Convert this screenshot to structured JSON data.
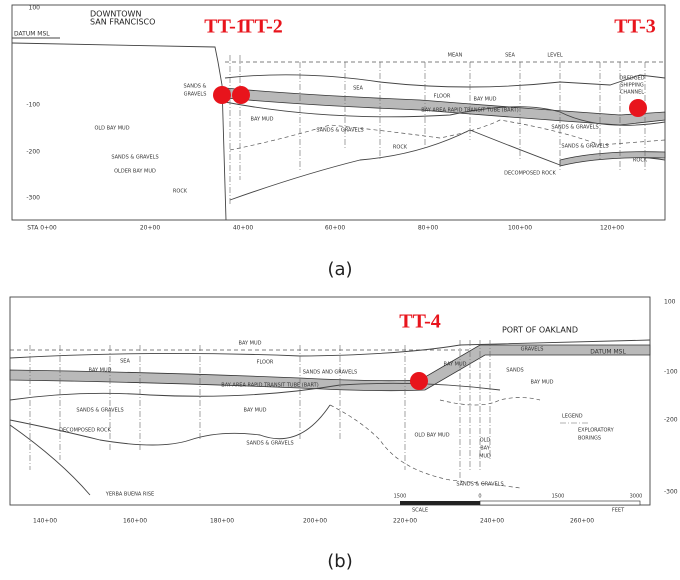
{
  "panel_a": {
    "location": [
      "DOWNTOWN",
      "SAN FRANCISCO"
    ],
    "datum": "DATUM MSL",
    "markers": [
      "TT-1",
      "TT-2",
      "TT-3"
    ],
    "depth_labels": [
      "100",
      "-100",
      "-200",
      "-300"
    ],
    "station_labels": [
      "STA 0+00",
      "20+00",
      "40+00",
      "60+00",
      "80+00",
      "100+00",
      "120+00"
    ],
    "water_labels": [
      "MEAN",
      "SEA",
      "LEVEL"
    ],
    "layer_labels": [
      "SANDS &",
      "GRAVELS",
      "OLD BAY MUD",
      "SANDS & GRAVELS",
      "OLDER BAY MUD",
      "ROCK",
      "SEA",
      "FLOOR",
      "BAY MUD",
      "BAY MUD",
      "BAY AREA RAPID TRANSIT TUBE (BART)",
      "SANDS & GRAVELS",
      "ROCK",
      "SANDS & GRAVELS",
      "SANDS & GRAVELS",
      "DECOMPOSED ROCK",
      "ROCK",
      "DREDGED",
      "SHIPPING",
      "CHANNEL"
    ]
  },
  "caption_a": "(a)",
  "panel_b": {
    "location": "PORT OF OAKLAND",
    "datum": "DATUM MSL",
    "markers": [
      "TT-4"
    ],
    "depth_labels": [
      "100",
      "-100",
      "-200",
      "-300"
    ],
    "station_labels": [
      "140+00",
      "160+00",
      "180+00",
      "200+00",
      "220+00",
      "240+00",
      "260+00"
    ],
    "layer_labels": [
      "BAY MUD",
      "SEA",
      "FLOOR",
      "BAY MUD",
      "BAY MUD",
      "BAY AREA RAPID TRANSIT TUBE (BART)",
      "SANDS AND GRAVELS",
      "GRAVELS",
      "SANDS",
      "BAY MUD",
      "SANDS & GRAVELS",
      "DECOMPOSED ROCK",
      "BAY MUD",
      "SANDS & GRAVELS",
      "OLD BAY MUD",
      "OLD",
      "BAY",
      "MUD",
      "SANDS & GRAVELS",
      "YERBA BUENA RISE"
    ],
    "legend": [
      "LEGEND",
      "EXPLORATORY",
      "BORINGS"
    ],
    "scale": [
      "1500",
      "0",
      "1500",
      "3000",
      "SCALE",
      "FEET"
    ]
  },
  "caption_b": "(b)"
}
